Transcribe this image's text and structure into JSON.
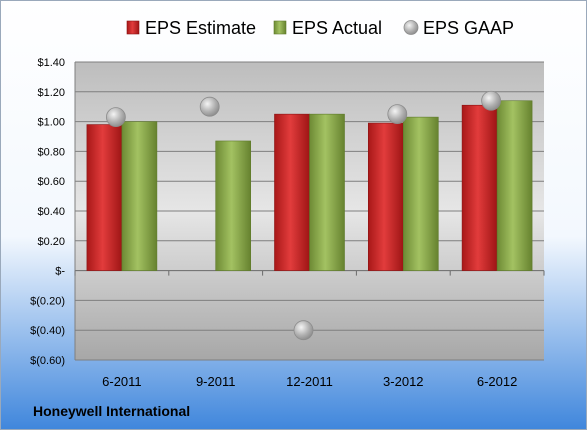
{
  "chart_data": {
    "type": "bar",
    "categories": [
      "6-2011",
      "9-2011",
      "12-2011",
      "3-2012",
      "6-2012"
    ],
    "series": [
      {
        "name": "EPS Estimate",
        "kind": "bar",
        "color": "#cc2a2a",
        "values": [
          0.98,
          null,
          1.05,
          0.99,
          1.11
        ]
      },
      {
        "name": "EPS Actual",
        "kind": "bar",
        "color": "#8aaa4a",
        "values": [
          1.0,
          0.87,
          1.05,
          1.03,
          1.14
        ]
      },
      {
        "name": "EPS GAAP",
        "kind": "marker",
        "color": "#b4b4b4",
        "values": [
          1.03,
          1.1,
          -0.4,
          1.05,
          1.14
        ]
      }
    ],
    "ylim": [
      -0.6,
      1.4
    ],
    "yticks": [
      1.4,
      1.2,
      1.0,
      0.8,
      0.6,
      0.4,
      0.2,
      0,
      -0.2,
      -0.4,
      -0.6
    ],
    "ytick_labels": [
      "$1.40",
      "$1.20",
      "$1.00",
      "$0.80",
      "$0.60",
      "$0.40",
      "$0.20",
      "$-",
      "$(0.20)",
      "$(0.40)",
      "$(0.60)"
    ],
    "grid": true,
    "legend_position": "top",
    "company": "Honeywell International"
  }
}
